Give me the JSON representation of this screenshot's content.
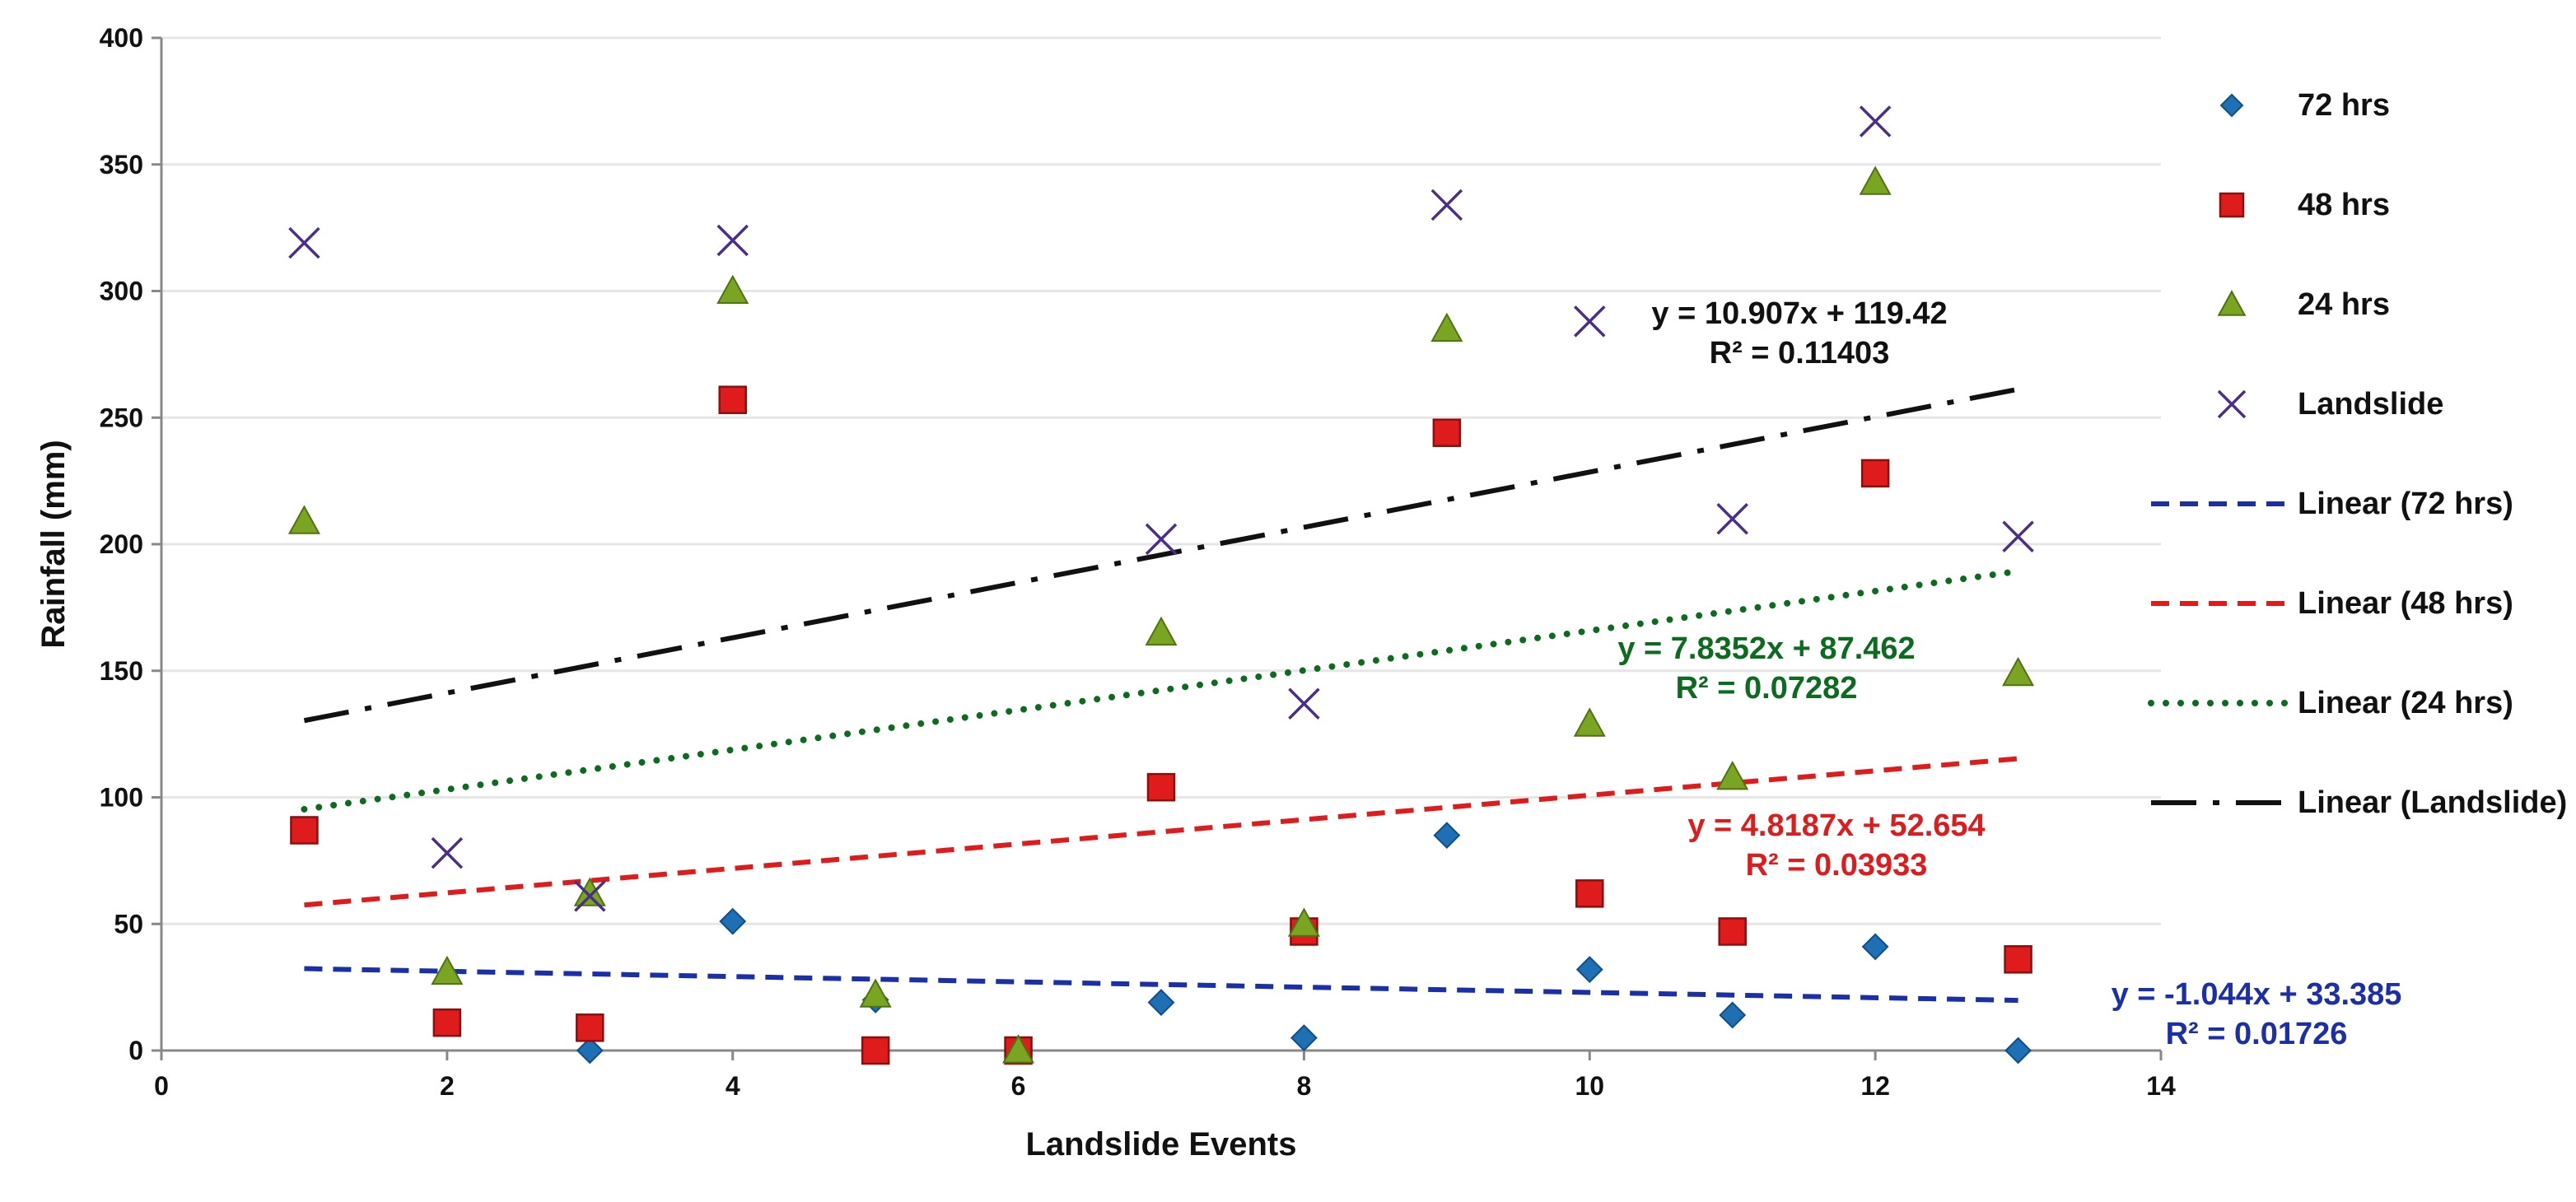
{
  "chart_data": {
    "type": "scatter",
    "xlabel": "Landslide Events",
    "ylabel": "Rainfall (mm)",
    "xlim": [
      0,
      14
    ],
    "ylim": [
      0,
      400
    ],
    "xticks": [
      0,
      2,
      4,
      6,
      8,
      10,
      12,
      14
    ],
    "yticks": [
      0,
      50,
      100,
      150,
      200,
      250,
      300,
      350,
      400
    ],
    "grid": "horizontal",
    "legend_position": "right",
    "series": [
      {
        "name": "72 hrs",
        "marker": "diamond",
        "color": "#1f6fb5",
        "x": [
          3,
          4,
          5,
          6,
          7,
          8,
          9,
          10,
          11,
          12,
          13
        ],
        "y": [
          0,
          51,
          20,
          0,
          19,
          5,
          85,
          32,
          14,
          41,
          0
        ]
      },
      {
        "name": "48 hrs",
        "marker": "square",
        "color": "#e01b1b",
        "x": [
          1,
          2,
          3,
          4,
          5,
          6,
          7,
          8,
          9,
          10,
          11,
          12,
          13
        ],
        "y": [
          87,
          11,
          9,
          257,
          0,
          0,
          104,
          47,
          244,
          62,
          47,
          228,
          36
        ]
      },
      {
        "name": "24 hrs",
        "marker": "triangle",
        "color": "#7aa522",
        "x": [
          1,
          2,
          3,
          4,
          5,
          6,
          7,
          8,
          9,
          10,
          11,
          12,
          13
        ],
        "y": [
          209,
          31,
          62,
          300,
          22,
          0,
          165,
          50,
          285,
          129,
          108,
          343,
          149
        ]
      },
      {
        "name": "Landslide",
        "marker": "x",
        "color": "#4b2d8a",
        "x": [
          1,
          2,
          3,
          4,
          7,
          8,
          9,
          10,
          11,
          12,
          13
        ],
        "y": [
          319,
          78,
          61,
          320,
          202,
          137,
          334,
          288,
          210,
          367,
          203
        ]
      }
    ],
    "trendlines": [
      {
        "name": "Linear (72 hrs)",
        "slope": -1.044,
        "intercept": 33.385,
        "color": "#1a2fa8",
        "dash": "dashed",
        "equation": "y = -1.044x + 33.385",
        "r2": "R² = 0.01726"
      },
      {
        "name": "Linear (48 hrs)",
        "slope": 4.8187,
        "intercept": 52.654,
        "color": "#e01b1b",
        "dash": "dashed",
        "equation": "y = 4.8187x + 52.654",
        "r2": "R² = 0.03933"
      },
      {
        "name": "Linear (24 hrs)",
        "slope": 7.8352,
        "intercept": 87.462,
        "color": "#0b6b1e",
        "dash": "dotted",
        "equation": "y = 7.8352x + 87.462",
        "r2": "R² = 0.07282"
      },
      {
        "name": "Linear (Landslide)",
        "slope": 10.907,
        "intercept": 119.42,
        "color": "#111111",
        "dash": "dashdot",
        "equation": "y = 10.907x + 119.42",
        "r2": "R² = 0.11403"
      }
    ],
    "trend_x_range": [
      1,
      13
    ]
  }
}
